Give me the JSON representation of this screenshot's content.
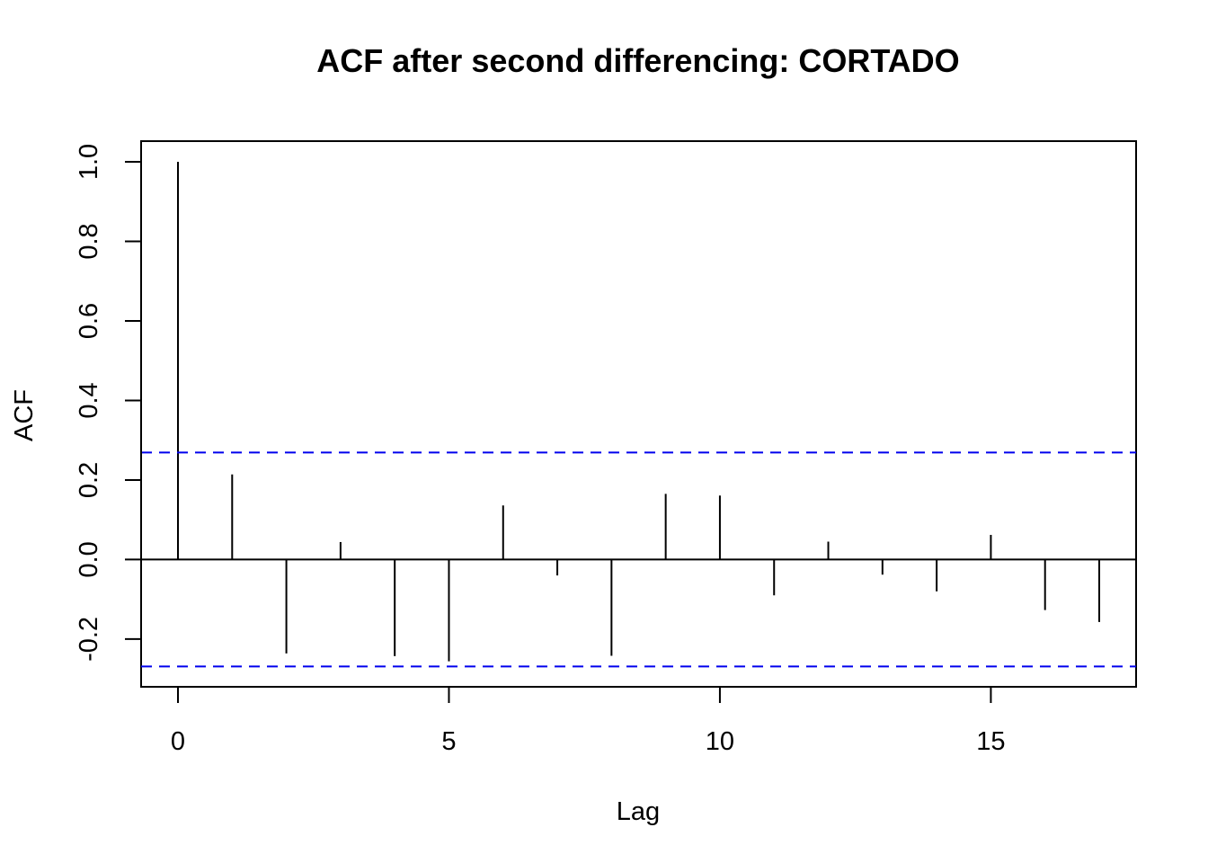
{
  "chart_data": {
    "type": "bar",
    "title": "ACF after second differencing: CORTADO",
    "xlabel": "Lag",
    "ylabel": "ACF",
    "x": [
      0,
      1,
      2,
      3,
      4,
      5,
      6,
      7,
      8,
      9,
      10,
      11,
      12,
      13,
      14,
      15,
      16,
      17
    ],
    "values": [
      1.0,
      0.214,
      -0.236,
      0.044,
      -0.243,
      -0.256,
      0.136,
      -0.04,
      -0.242,
      0.165,
      0.161,
      -0.09,
      0.045,
      -0.038,
      -0.08,
      0.062,
      -0.127,
      -0.157
    ],
    "xlim": [
      -0.68,
      17.68
    ],
    "ylim": [
      -0.32,
      1.052
    ],
    "xticks": [
      0,
      5,
      10,
      15
    ],
    "yticks": [
      -0.2,
      0.0,
      0.2,
      0.4,
      0.6,
      0.8,
      1.0
    ],
    "xtick_labels": [
      "0",
      "5",
      "10",
      "15"
    ],
    "ytick_labels": [
      "-0.2",
      "0.0",
      "0.2",
      "0.4",
      "0.6",
      "0.8",
      "1.0"
    ],
    "confidence_bounds": [
      0.269,
      -0.269
    ],
    "confidence_color": "#0000ee",
    "bar_color": "#000000",
    "grid": false,
    "legend": "none"
  }
}
